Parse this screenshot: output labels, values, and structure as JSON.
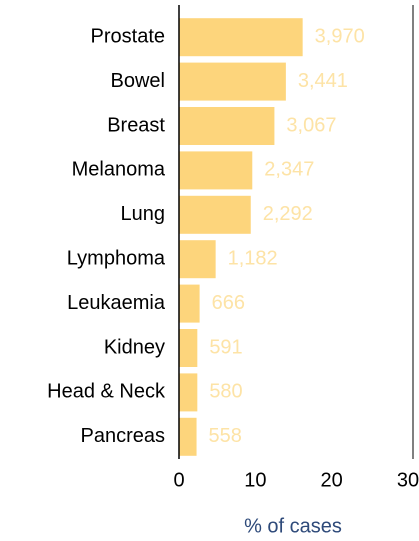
{
  "chart_data": {
    "type": "bar",
    "orientation": "horizontal",
    "categories": [
      "Prostate",
      "Bowel",
      "Breast",
      "Melanoma",
      "Lung",
      "Lymphoma",
      "Leukaemia",
      "Kidney",
      "Head & Neck",
      "Pancreas"
    ],
    "values": [
      16.2,
      14.0,
      12.5,
      9.6,
      9.4,
      4.8,
      2.7,
      2.4,
      2.4,
      2.3
    ],
    "case_counts": [
      "3,970",
      "3,441",
      "3,067",
      "2,347",
      "2,292",
      "1,182",
      "666",
      "591",
      "580",
      "558"
    ],
    "color": "#fdd57c",
    "count_color": "#fde3a6",
    "xlabel": "% of cases",
    "xlim": [
      0,
      30
    ],
    "xticks": [
      0,
      10,
      20,
      30
    ]
  }
}
